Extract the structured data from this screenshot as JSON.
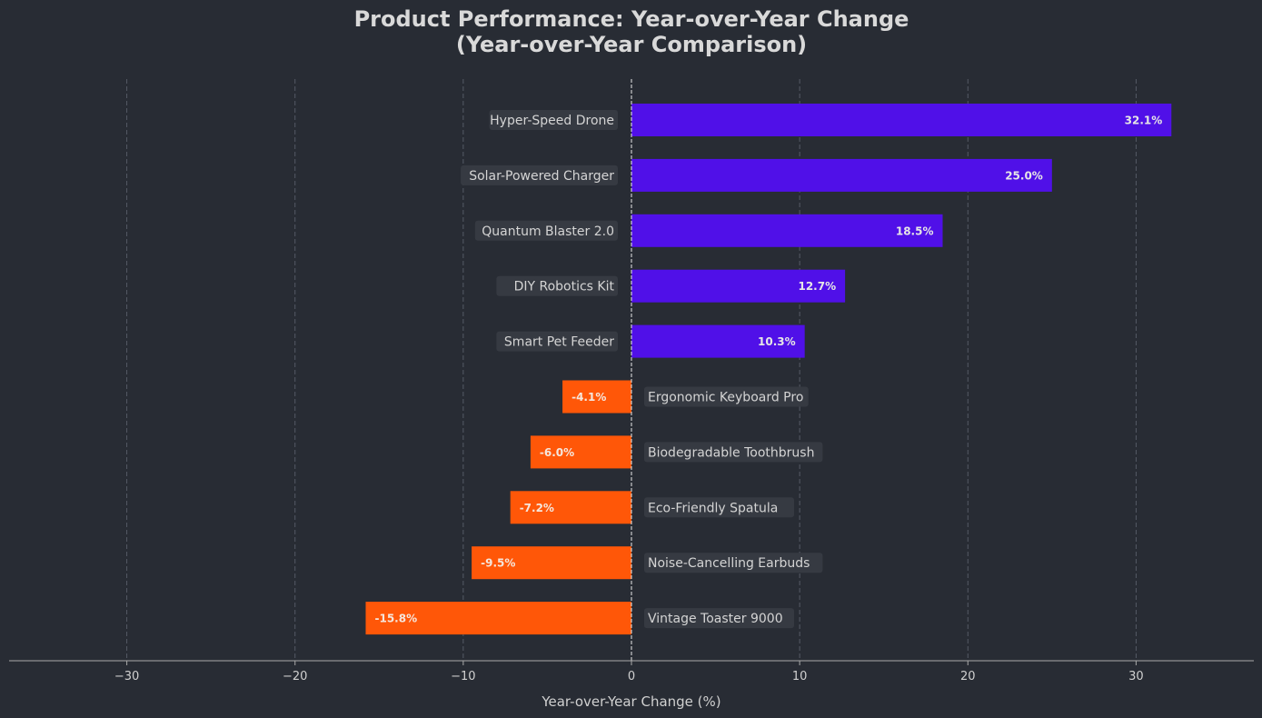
{
  "chart_data": {
    "type": "bar",
    "orientation": "horizontal",
    "title": "Product Performance: Year-over-Year Change\n(Year-over-Year Comparison)",
    "xlabel": "Year-over-Year Change (%)",
    "ylabel": "",
    "xlim": [
      -37,
      37
    ],
    "xticks": [
      -30,
      -20,
      -10,
      0,
      10,
      20,
      30
    ],
    "xtick_labels": [
      "−30",
      "−20",
      "−10",
      "0",
      "10",
      "20",
      "30"
    ],
    "grid": true,
    "categories": [
      "Hyper-Speed Drone",
      "Solar-Powered Charger",
      "Quantum Blaster 2.0",
      "DIY Robotics Kit",
      "Smart Pet Feeder",
      "Ergonomic Keyboard Pro",
      "Biodegradable Toothbrush",
      "Eco-Friendly Spatula",
      "Noise-Cancelling Earbuds",
      "Vintage Toaster 9000"
    ],
    "values": [
      32.1,
      25.0,
      18.5,
      12.7,
      10.3,
      -4.1,
      -6.0,
      -7.2,
      -9.5,
      -15.8
    ],
    "value_labels": [
      "32.1%",
      "25.0%",
      "18.5%",
      "12.7%",
      "10.3%",
      "-4.1%",
      "-6.0%",
      "-7.2%",
      "-9.5%",
      "-15.8%"
    ],
    "colors": {
      "positive": "#5010e8",
      "negative": "#ff5708",
      "background": "#282c34",
      "label_box": "#363a42",
      "grid": "#5a5f6a",
      "text": "#d4d4d4"
    }
  }
}
